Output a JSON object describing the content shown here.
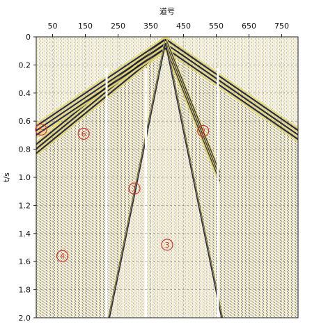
{
  "chart_data": {
    "type": "seismic-record",
    "x_title": "道号",
    "y_title": "t/s",
    "x_range": [
      0,
      800
    ],
    "y_range": [
      0,
      2.0
    ],
    "x_ticks": [
      50,
      150,
      250,
      350,
      450,
      550,
      650,
      750
    ],
    "y_ticks": [
      0,
      0.2,
      0.4,
      0.6,
      0.8,
      1.0,
      1.2,
      1.4,
      1.6,
      1.8,
      2.0
    ],
    "y_tick_labels": [
      "0",
      "0.2",
      "0.4",
      "0.6",
      "0.8",
      "1.0",
      "1.2",
      "1.4",
      "1.6",
      "1.8",
      "2.0"
    ],
    "gridlines": true,
    "source_trace": 395,
    "events": [
      {
        "name": "direct wave (left branch)",
        "points": [
          [
            395,
            0.0
          ],
          [
            0,
            0.75
          ]
        ]
      },
      {
        "name": "direct wave (right branch)",
        "points": [
          [
            395,
            0.0
          ],
          [
            800,
            0.65
          ]
        ]
      },
      {
        "name": "refraction (left)",
        "points": [
          [
            395,
            0.0
          ],
          [
            0,
            0.62
          ]
        ]
      },
      {
        "name": "refraction (right)",
        "points": [
          [
            395,
            0.0
          ],
          [
            560,
            0.95
          ]
        ]
      },
      {
        "name": "surface wave (left)",
        "points": [
          [
            395,
            0.0
          ],
          [
            220,
            2.0
          ]
        ]
      },
      {
        "name": "surface wave (right)",
        "points": [
          [
            395,
            0.0
          ],
          [
            570,
            2.0
          ]
        ]
      }
    ],
    "dead_traces": [
      215,
      335,
      555
    ],
    "markers": [
      {
        "label": "①",
        "trace": 300,
        "t": 1.08
      },
      {
        "label": "②",
        "trace": 510,
        "t": 0.67
      },
      {
        "label": "③",
        "trace": 400,
        "t": 1.48
      },
      {
        "label": "④",
        "trace": 80,
        "t": 1.56
      },
      {
        "label": "⑤",
        "trace": 15,
        "t": 0.66
      },
      {
        "label": "⑥",
        "trace": 145,
        "t": 0.69
      }
    ],
    "colors": {
      "positive_fill": "#e4d870",
      "wiggle": "#1a1a38",
      "background": "#f6f2e4",
      "marker": "#d8322a"
    }
  }
}
